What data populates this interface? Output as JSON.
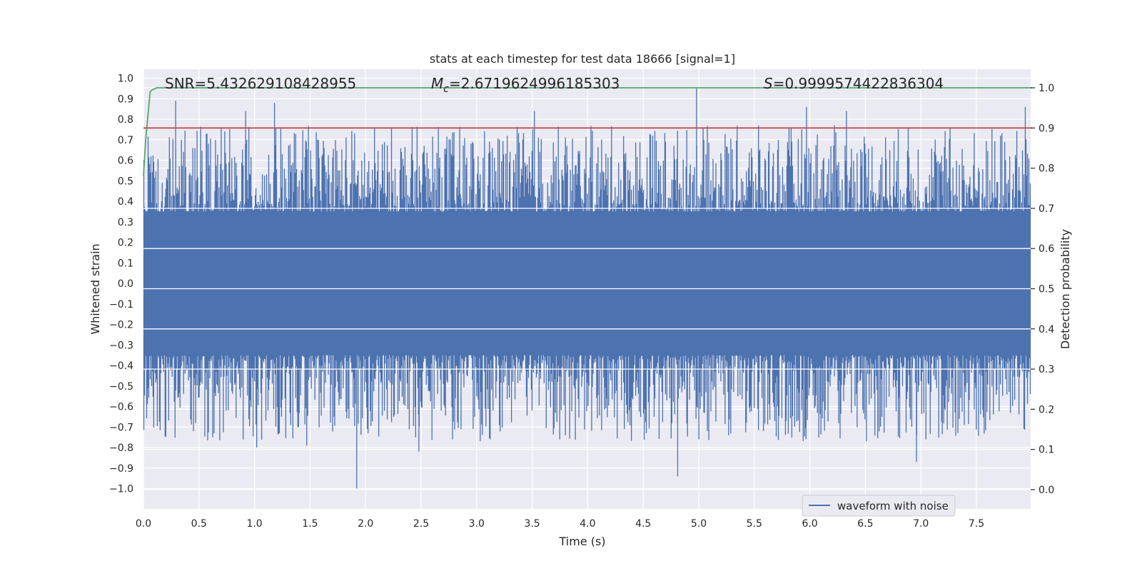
{
  "chart_data": {
    "type": "line",
    "title": "stats at each timestep for test data 18666 [signal=1]",
    "xlabel": "Time (s)",
    "ylabel": "Whitened strain",
    "y2label": "Detection probability",
    "xlim": [
      0.0,
      8.0
    ],
    "ylim": [
      -1.09,
      1.04
    ],
    "y2lim": [
      -0.04,
      1.04
    ],
    "xticks": [
      "0.0",
      "0.5",
      "1.0",
      "1.5",
      "2.0",
      "2.5",
      "3.0",
      "3.5",
      "4.0",
      "4.5",
      "5.0",
      "5.5",
      "6.0",
      "6.5",
      "7.0",
      "7.5"
    ],
    "yticks": [
      "1.0",
      "0.9",
      "0.8",
      "0.7",
      "0.6",
      "0.5",
      "0.4",
      "0.3",
      "0.2",
      "0.1",
      "0.0",
      "−0.1",
      "−0.2",
      "−0.3",
      "−0.4",
      "−0.5",
      "−0.6",
      "−0.7",
      "−0.8",
      "−0.9",
      "−1.0"
    ],
    "y2ticks": [
      "1.0",
      "0.9",
      "0.8",
      "0.7",
      "0.6",
      "0.5",
      "0.4",
      "0.3",
      "0.2",
      "0.1",
      "0.0"
    ],
    "annotations": {
      "snr": "SNR=5.432629108428955",
      "mc_symbol": "M",
      "mc_sub": "c",
      "mc_value": "=2.6719624996185303",
      "s_symbol": "S",
      "s_value": "=0.9999574422836304"
    },
    "legend": {
      "label": "waveform with noise",
      "position": "lower-right"
    },
    "series": [
      {
        "name": "waveform with noise",
        "axis": "left",
        "color": "#4c72b0",
        "envelope_typical": [
          -0.35,
          0.35
        ],
        "peaks": [
          {
            "x": 0.29,
            "y": 0.89
          },
          {
            "x": 0.92,
            "y": 0.84
          },
          {
            "x": 1.18,
            "y": 0.88
          },
          {
            "x": 3.52,
            "y": 0.84
          },
          {
            "x": 4.98,
            "y": 0.95
          },
          {
            "x": 5.97,
            "y": 0.86
          },
          {
            "x": 6.33,
            "y": 0.84
          },
          {
            "x": 7.94,
            "y": 0.86
          },
          {
            "x": 1.92,
            "y": -1.0
          },
          {
            "x": 4.81,
            "y": -0.94
          },
          {
            "x": 6.96,
            "y": -0.87
          },
          {
            "x": 1.02,
            "y": -0.8
          },
          {
            "x": 1.47,
            "y": -0.79
          },
          {
            "x": 2.48,
            "y": -0.82
          }
        ]
      },
      {
        "name": "detection probability",
        "axis": "right",
        "color": "#55a868",
        "x": [
          0.0,
          0.02,
          0.04,
          0.06,
          0.08,
          0.12,
          0.2,
          8.0
        ],
        "values": [
          0.78,
          0.87,
          0.93,
          0.99,
          0.995,
          1.0,
          1.0,
          1.0
        ]
      },
      {
        "name": "threshold",
        "axis": "right",
        "color": "#c44e52",
        "x": [
          0.0,
          8.0
        ],
        "values": [
          0.9,
          0.9
        ]
      }
    ]
  }
}
